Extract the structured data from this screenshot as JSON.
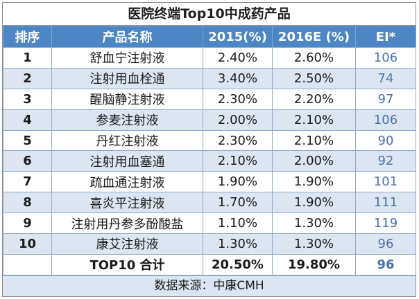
{
  "title": "医院终端Top10中成药产品",
  "headers": [
    "排序",
    "产品名称",
    "2015(%)",
    "2016E (%)",
    "EI*"
  ],
  "rows": [
    {
      "rank": "1",
      "name": "舒血宁注射液",
      "y2015": "2.40%",
      "y2016": "2.60%",
      "ei": "106"
    },
    {
      "rank": "2",
      "name": "注射用血栓通",
      "y2015": "3.40%",
      "y2016": "2.50%",
      "ei": "74"
    },
    {
      "rank": "3",
      "name": "醒脑静注射液",
      "y2015": "2.30%",
      "y2016": "2.20%",
      "ei": "97"
    },
    {
      "rank": "4",
      "name": "参麦注射液",
      "y2015": "2.00%",
      "y2016": "2.10%",
      "ei": "106"
    },
    {
      "rank": "5",
      "name": "丹红注射液",
      "y2015": "2.30%",
      "y2016": "2.10%",
      "ei": "90"
    },
    {
      "rank": "6",
      "name": "注射用血塞通",
      "y2015": "2.10%",
      "y2016": "2.00%",
      "ei": "92"
    },
    {
      "rank": "7",
      "name": "疏血通注射液",
      "y2015": "1.90%",
      "y2016": "1.90%",
      "ei": "101"
    },
    {
      "rank": "8",
      "name": "喜炎平注射液",
      "y2015": "1.70%",
      "y2016": "1.90%",
      "ei": "111"
    },
    {
      "rank": "9",
      "name": "注射用丹参多酚酸盐",
      "y2015": "1.10%",
      "y2016": "1.30%",
      "ei": "119"
    },
    {
      "rank": "10",
      "name": "康艾注射液",
      "y2015": "1.30%",
      "y2016": "1.30%",
      "ei": "96"
    }
  ],
  "total": {
    "label": "TOP10 合计",
    "y2015": "20.50%",
    "y2016": "19.80%",
    "ei": "96"
  },
  "source": "数据来源：中康CMH",
  "colors": {
    "header_bg": "#4d86c4",
    "stripe_bg": "#dce6f2",
    "ei_text": "#4a73a8"
  }
}
